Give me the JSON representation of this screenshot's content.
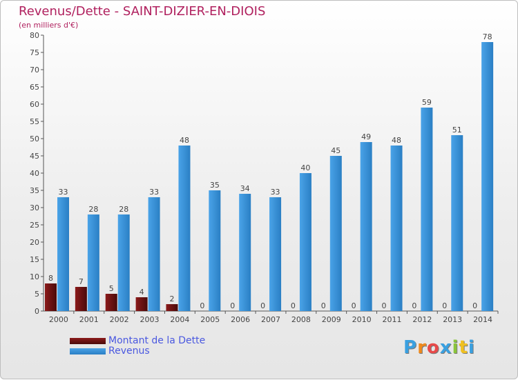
{
  "header": {
    "title": "Revenus/Dette - SAINT-DIZIER-EN-DIOIS",
    "subtitle": "(en milliers d'€)"
  },
  "legend": {
    "debt_label": "Montant de la Dette",
    "revenue_label": "Revenus"
  },
  "logo": {
    "text": "Proxiti"
  },
  "colors": {
    "debt": "#8b1a1a",
    "debt_dark": "#4a0a0a",
    "revenue": "#4aa3e8",
    "revenue_dark": "#2a7fc4",
    "title": "#b0205e",
    "legend_text": "#4a58e0"
  },
  "chart_data": {
    "type": "bar",
    "title": "Revenus/Dette - SAINT-DIZIER-EN-DIOIS",
    "ylabel": "(en milliers d'€)",
    "xlabel": "",
    "categories": [
      "2000",
      "2001",
      "2002",
      "2003",
      "2004",
      "2005",
      "2006",
      "2007",
      "2008",
      "2009",
      "2010",
      "2011",
      "2012",
      "2013",
      "2014"
    ],
    "series": [
      {
        "name": "Montant de la Dette",
        "values": [
          8,
          7,
          5,
          4,
          2,
          0,
          0,
          0,
          0,
          0,
          0,
          0,
          0,
          0,
          0
        ]
      },
      {
        "name": "Revenus",
        "values": [
          33,
          28,
          28,
          33,
          48,
          35,
          34,
          33,
          40,
          45,
          49,
          48,
          59,
          51,
          78
        ]
      }
    ],
    "ylim": [
      0,
      80
    ],
    "yticks": [
      0,
      5,
      10,
      15,
      20,
      25,
      30,
      35,
      40,
      45,
      50,
      55,
      60,
      65,
      70,
      75,
      80
    ],
    "grid": false,
    "legend_position": "bottom-left"
  }
}
